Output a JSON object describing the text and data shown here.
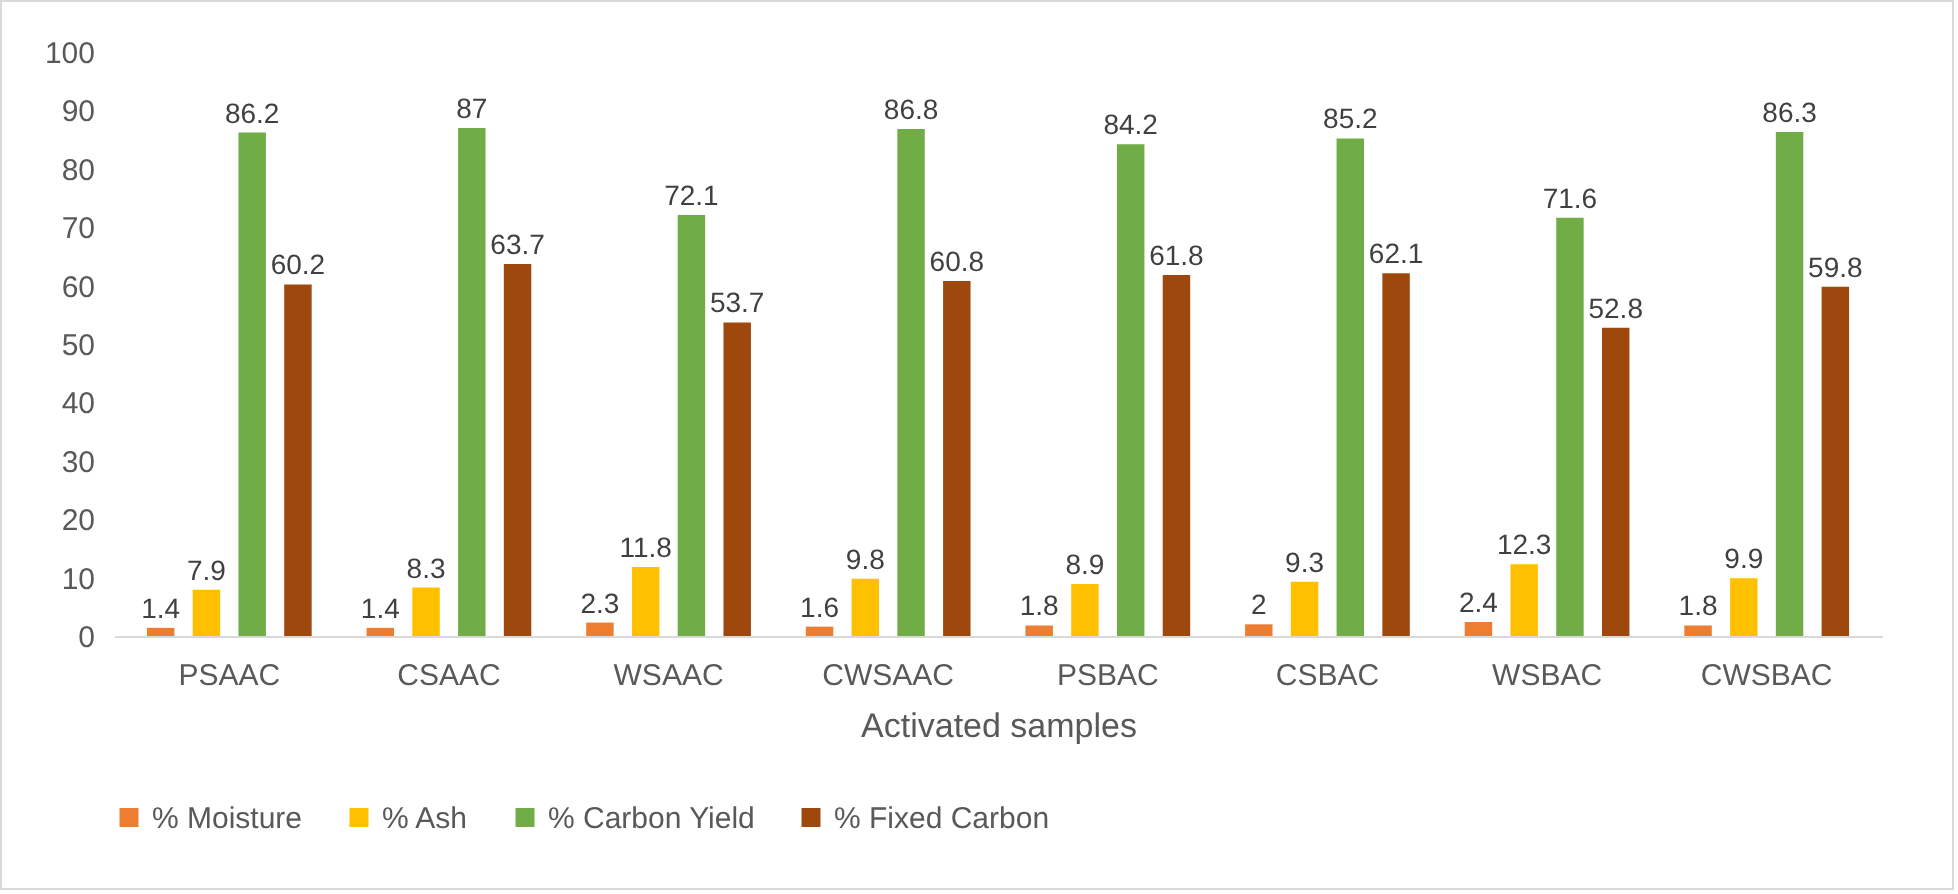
{
  "chart_data": {
    "type": "bar",
    "xlabel": "Activated samples",
    "categories": [
      "PSAAC",
      "CSAAC",
      "WSAAC",
      "CWSAAC",
      "PSBAC",
      "CSBAC",
      "WSBAC",
      "CWSBAC"
    ],
    "series": [
      {
        "name": "% Moisture",
        "color": "#ed7d31",
        "values": [
          1.4,
          1.4,
          2.3,
          1.6,
          1.8,
          2,
          2.4,
          1.8
        ]
      },
      {
        "name": "% Ash",
        "color": "#ffc000",
        "values": [
          7.9,
          8.3,
          11.8,
          9.8,
          8.9,
          9.3,
          12.3,
          9.9
        ]
      },
      {
        "name": "% Carbon Yield",
        "color": "#70ad47",
        "values": [
          86.2,
          87,
          72.1,
          86.8,
          84.2,
          85.2,
          71.6,
          86.3
        ]
      },
      {
        "name": "% Fixed Carbon",
        "color": "#9e480e",
        "values": [
          60.2,
          63.7,
          53.7,
          60.8,
          61.8,
          62.1,
          52.8,
          59.8
        ]
      }
    ],
    "ylim": [
      0,
      100
    ],
    "yticks": [
      0,
      10,
      20,
      30,
      40,
      50,
      60,
      70,
      80,
      90,
      100
    ],
    "grid": false,
    "legend": "bottom",
    "data_labels": true
  }
}
